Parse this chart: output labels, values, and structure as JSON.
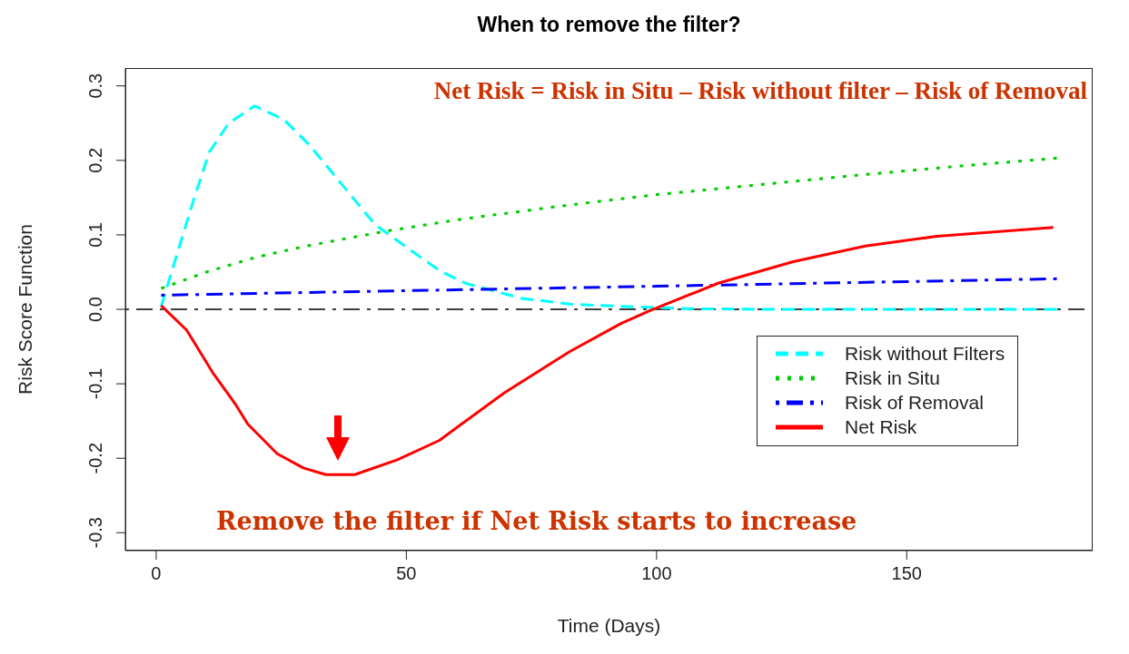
{
  "chart_data": {
    "type": "line",
    "title": "When to remove the filter?",
    "xlabel": "Time (Days)",
    "ylabel": "Risk Score Function",
    "xlim": [
      -6.16,
      187.16
    ],
    "xticks": [
      0,
      50,
      100,
      150
    ],
    "ylim": [
      -0.324,
      0.324
    ],
    "yticks": [
      -0.3,
      -0.2,
      -0.1,
      {
        "value": 0,
        "label": "0.0"
      },
      0.1,
      0.2,
      0.3
    ],
    "grid": false,
    "legend": "right",
    "marker": "none",
    "ref_lines": [
      {
        "axis": "y",
        "value": 0,
        "color": "#000000",
        "line_style": "dashdot"
      }
    ],
    "annotations": [
      "Net Risk = Risk in Situ – Risk without filter – Risk of Removal",
      "Remove the filter if  Net Risk starts to increase"
    ],
    "series": [
      {
        "name": "Risk without Filters",
        "color": "#00ffff",
        "line_style": "dashed",
        "x": [
          1,
          4.8,
          7.4,
          10.6,
          14.5,
          19.7,
          25.5,
          30.7,
          37.2,
          43.7,
          50.1,
          56.6,
          61.8,
          72.8,
          82.6,
          92.9,
          105,
          120,
          140,
          160,
          180
        ],
        "values": [
          0.004,
          0.088,
          0.145,
          0.211,
          0.25,
          0.273,
          0.255,
          0.22,
          0.167,
          0.114,
          0.083,
          0.052,
          0.035,
          0.015,
          0.007,
          0.004,
          0.001,
          0,
          0,
          0,
          0
        ]
      },
      {
        "name": "Risk in Situ",
        "color": "#00cc00",
        "line_style": "dotted",
        "x": [
          1,
          10,
          20,
          30,
          46,
          60,
          80,
          100,
          120,
          140,
          160,
          180
        ],
        "values": [
          0.028,
          0.05,
          0.07,
          0.085,
          0.105,
          0.12,
          0.138,
          0.154,
          0.167,
          0.18,
          0.192,
          0.203
        ]
      },
      {
        "name": "Risk of Removal",
        "color": "#0000ff",
        "line_style": "dashdot",
        "x": [
          1,
          50,
          100,
          140,
          180
        ],
        "values": [
          0.019,
          0.025,
          0.031,
          0.036,
          0.041
        ]
      },
      {
        "name": "Net Risk",
        "color": "#ff0000",
        "line_style": "solid",
        "x": [
          1,
          6.1,
          11.3,
          15.8,
          18.3,
          24.2,
          29.4,
          33.9,
          39.7,
          48.2,
          56.6,
          69.6,
          82.6,
          92.9,
          98.6,
          112.3,
          127.3,
          141.7,
          156,
          179.3
        ],
        "values": [
          0.005,
          -0.028,
          -0.085,
          -0.127,
          -0.154,
          -0.194,
          -0.213,
          -0.222,
          -0.222,
          -0.202,
          -0.176,
          -0.112,
          -0.057,
          -0.019,
          -0.002,
          0.035,
          0.064,
          0.085,
          0.098,
          0.11
        ]
      }
    ]
  }
}
